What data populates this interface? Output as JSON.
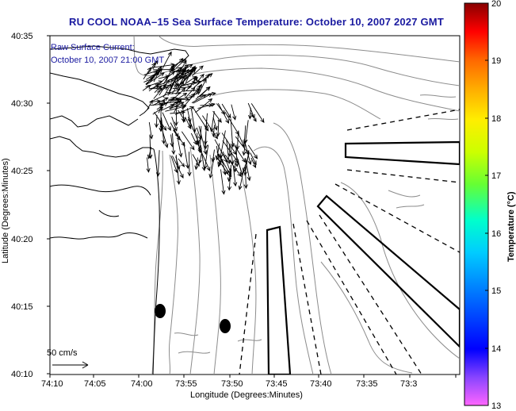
{
  "title": "RU COOL  NOAA–15  Sea Surface Temperature:  October 10, 2007 2027 GMT",
  "annotation": {
    "line1": "Raw Surface Current:",
    "line2": "October 10, 2007 21:00 GMT"
  },
  "scale_label": "50 cm/s",
  "axes": {
    "x_label": "Longitude (Degrees:Minutes)",
    "y_label": "Latitude (Degrees:Minutes)",
    "x_ticks": [
      "74:10",
      "74:05",
      "74:00",
      "73:55",
      "73:50",
      "73:45",
      "73:40",
      "73:35",
      "73:3"
    ],
    "y_ticks": [
      "40:35",
      "40:30",
      "40:25",
      "40:20",
      "40:15",
      "40:10"
    ]
  },
  "colorbar": {
    "label": "Temperature (°C)",
    "ticks": [
      "20",
      "19",
      "18",
      "17",
      "16",
      "15",
      "14",
      "13"
    ],
    "range": [
      13,
      20
    ]
  },
  "colors": {
    "title": "#1a1aa0",
    "annotation": "#1a1aa0",
    "coastline": "#000000",
    "bathymetry": "#8c8c8c",
    "arrows": "#000000"
  }
}
